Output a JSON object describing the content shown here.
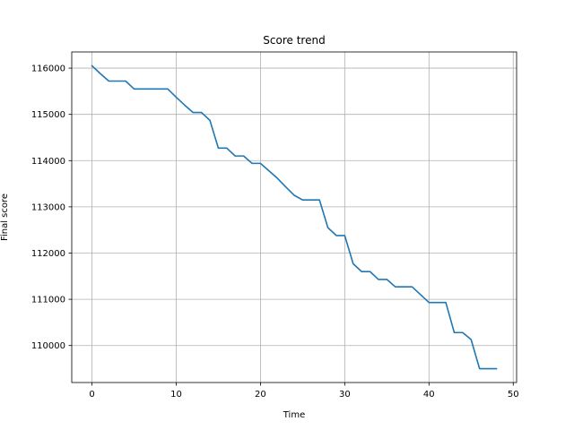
{
  "chart_data": {
    "type": "line",
    "title": "Score trend",
    "xlabel": "Time",
    "ylabel": "Final score",
    "xlim": [
      -2.4,
      50.4
    ],
    "ylim": [
      109200,
      116350
    ],
    "grid": true,
    "x_ticks": [
      0,
      10,
      20,
      30,
      40,
      50
    ],
    "y_ticks": [
      110000,
      111000,
      112000,
      113000,
      114000,
      115000,
      116000
    ],
    "series": [
      {
        "color": "#1f77b4",
        "x": [
          0,
          1,
          2,
          3,
          4,
          5,
          6,
          7,
          8,
          9,
          10,
          11,
          12,
          13,
          14,
          15,
          16,
          17,
          18,
          19,
          20,
          21,
          22,
          23,
          24,
          25,
          26,
          27,
          28,
          29,
          30,
          31,
          32,
          33,
          34,
          35,
          36,
          37,
          38,
          39,
          40,
          41,
          42,
          43,
          44,
          45,
          46,
          47,
          48
        ],
        "values": [
          116050,
          115880,
          115720,
          115720,
          115720,
          115550,
          115550,
          115550,
          115550,
          115550,
          115370,
          115200,
          115040,
          115040,
          114870,
          114270,
          114270,
          114100,
          114100,
          113940,
          113940,
          113780,
          113620,
          113430,
          113250,
          113150,
          113150,
          113150,
          112550,
          112380,
          112380,
          111770,
          111600,
          111600,
          111430,
          111430,
          111270,
          111270,
          111270,
          111100,
          110930,
          110930,
          110930,
          110280,
          110280,
          110130,
          109500,
          109500,
          109500
        ]
      }
    ]
  }
}
